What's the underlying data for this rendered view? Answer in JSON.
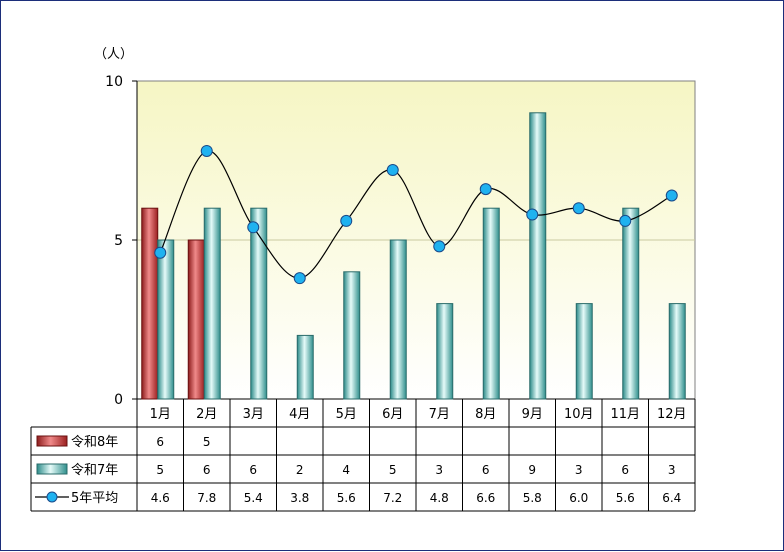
{
  "chart_data": {
    "type": "bar",
    "unit_label": "（人）",
    "categories": [
      "1月",
      "2月",
      "3月",
      "4月",
      "5月",
      "6月",
      "7月",
      "8月",
      "9月",
      "10月",
      "11月",
      "12月"
    ],
    "ylim": [
      0,
      10
    ],
    "yticks": [
      0,
      5,
      10
    ],
    "grid": true,
    "series": [
      {
        "name": "令和8年",
        "kind": "bar",
        "color": "#d9534f",
        "values": [
          6,
          5,
          null,
          null,
          null,
          null,
          null,
          null,
          null,
          null,
          null,
          null
        ],
        "labels": [
          "6",
          "5",
          "",
          "",
          "",
          "",
          "",
          "",
          "",
          "",
          "",
          ""
        ]
      },
      {
        "name": "令和7年",
        "kind": "bar",
        "color": "#8fd9d2",
        "values": [
          5,
          6,
          6,
          2,
          4,
          5,
          3,
          6,
          9,
          3,
          6,
          3
        ],
        "labels": [
          "5",
          "6",
          "6",
          "2",
          "4",
          "5",
          "3",
          "6",
          "9",
          "3",
          "6",
          "3"
        ]
      },
      {
        "name": "5年平均",
        "kind": "line",
        "color": "#1fb2f0",
        "values": [
          4.6,
          7.8,
          5.4,
          3.8,
          5.6,
          7.2,
          4.8,
          6.6,
          5.8,
          6.0,
          5.6,
          6.4
        ],
        "labels": [
          "4.6",
          "7.8",
          "5.4",
          "3.8",
          "5.6",
          "7.2",
          "4.8",
          "6.6",
          "5.8",
          "6.0",
          "5.6",
          "6.4"
        ]
      }
    ]
  }
}
